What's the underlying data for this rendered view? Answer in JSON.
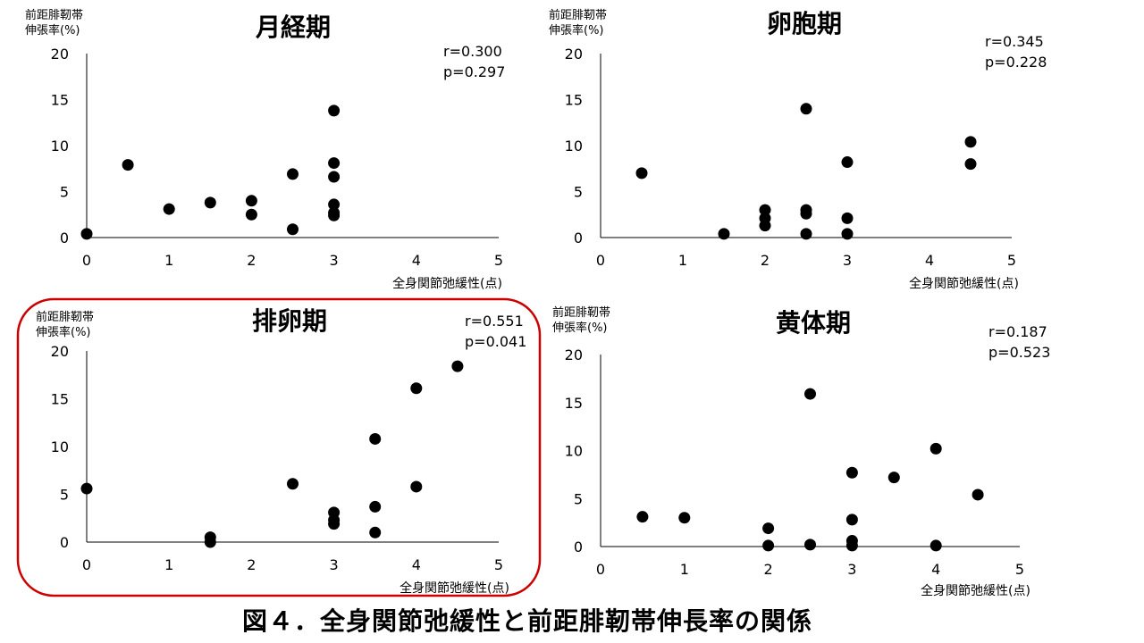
{
  "figure_caption": "図４．全身関節弛緩性と前距腓靭帯伸長率の関係",
  "highlight_color": "#cc0000",
  "point_color": "#000000",
  "chart_data": [
    {
      "type": "scatter",
      "title": "月経期",
      "ylabel_line1": "前距腓靭帯",
      "ylabel_line2": "伸張率(%)",
      "xlabel": "全身関節弛緩性(点)",
      "r_text": "r=0.300",
      "p_text": "p=0.297",
      "xlim": [
        0,
        5
      ],
      "ylim": [
        0,
        20
      ],
      "xticks": [
        0,
        1,
        2,
        3,
        4,
        5
      ],
      "yticks": [
        0,
        5,
        10,
        15,
        20
      ],
      "highlighted": false,
      "points": [
        [
          0,
          0.4
        ],
        [
          0.5,
          7.9
        ],
        [
          1,
          3.1
        ],
        [
          1.5,
          3.8
        ],
        [
          2,
          4.0
        ],
        [
          2,
          2.5
        ],
        [
          2.5,
          6.9
        ],
        [
          2.5,
          0.9
        ],
        [
          3,
          13.8
        ],
        [
          3,
          8.1
        ],
        [
          3,
          6.6
        ],
        [
          3,
          3.6
        ],
        [
          3,
          2.7
        ],
        [
          3,
          2.4
        ]
      ]
    },
    {
      "type": "scatter",
      "title": "卵胞期",
      "ylabel_line1": "前距腓靭帯",
      "ylabel_line2": "伸張率(%)",
      "xlabel": "全身関節弛緩性(点)",
      "r_text": "r=0.345",
      "p_text": "p=0.228",
      "xlim": [
        0,
        5
      ],
      "ylim": [
        0,
        20
      ],
      "xticks": [
        0,
        1,
        2,
        3,
        4,
        5
      ],
      "yticks": [
        0,
        5,
        10,
        15,
        20
      ],
      "highlighted": false,
      "points": [
        [
          0.5,
          7.0
        ],
        [
          1.5,
          0.4
        ],
        [
          2,
          3.0
        ],
        [
          2,
          2.1
        ],
        [
          2,
          1.3
        ],
        [
          2.5,
          14.0
        ],
        [
          2.5,
          3.0
        ],
        [
          2.5,
          2.6
        ],
        [
          2.5,
          0.4
        ],
        [
          3,
          8.2
        ],
        [
          3,
          2.1
        ],
        [
          3,
          0.4
        ],
        [
          4.5,
          10.4
        ],
        [
          4.5,
          8.0
        ]
      ]
    },
    {
      "type": "scatter",
      "title": "排卵期",
      "ylabel_line1": "前距腓靭帯",
      "ylabel_line2": "伸張率(%)",
      "xlabel": "全身関節弛緩性(点)",
      "r_text": "r=0.551",
      "p_text": "p=0.041",
      "xlim": [
        0,
        5
      ],
      "ylim": [
        0,
        20
      ],
      "xticks": [
        0,
        1,
        2,
        3,
        4,
        5
      ],
      "yticks": [
        0,
        5,
        10,
        15,
        20
      ],
      "highlighted": true,
      "points": [
        [
          0,
          5.6
        ],
        [
          1.5,
          0.5
        ],
        [
          1.5,
          0.0
        ],
        [
          2.5,
          6.1
        ],
        [
          3,
          3.1
        ],
        [
          3,
          2.3
        ],
        [
          3,
          1.9
        ],
        [
          3.5,
          10.8
        ],
        [
          3.5,
          3.7
        ],
        [
          3.5,
          1.0
        ],
        [
          4,
          16.1
        ],
        [
          4,
          5.8
        ],
        [
          4.5,
          18.4
        ]
      ]
    },
    {
      "type": "scatter",
      "title": "黄体期",
      "ylabel_line1": "前距腓靭帯",
      "ylabel_line2": "伸張率(%)",
      "xlabel": "全身関節弛緩性(点)",
      "r_text": "r=0.187",
      "p_text": "p=0.523",
      "xlim": [
        0,
        5
      ],
      "ylim": [
        0,
        20
      ],
      "xticks": [
        0,
        1,
        2,
        3,
        4,
        5
      ],
      "yticks": [
        0,
        5,
        10,
        15,
        20
      ],
      "highlighted": false,
      "points": [
        [
          0.5,
          3.1
        ],
        [
          1,
          3.0
        ],
        [
          2,
          1.9
        ],
        [
          2,
          0.1
        ],
        [
          2.5,
          15.9
        ],
        [
          2.5,
          0.2
        ],
        [
          3,
          7.7
        ],
        [
          3,
          2.8
        ],
        [
          3,
          0.6
        ],
        [
          3,
          0.1
        ],
        [
          3.5,
          7.2
        ],
        [
          4,
          10.2
        ],
        [
          4,
          0.1
        ],
        [
          4.5,
          5.4
        ]
      ]
    }
  ]
}
